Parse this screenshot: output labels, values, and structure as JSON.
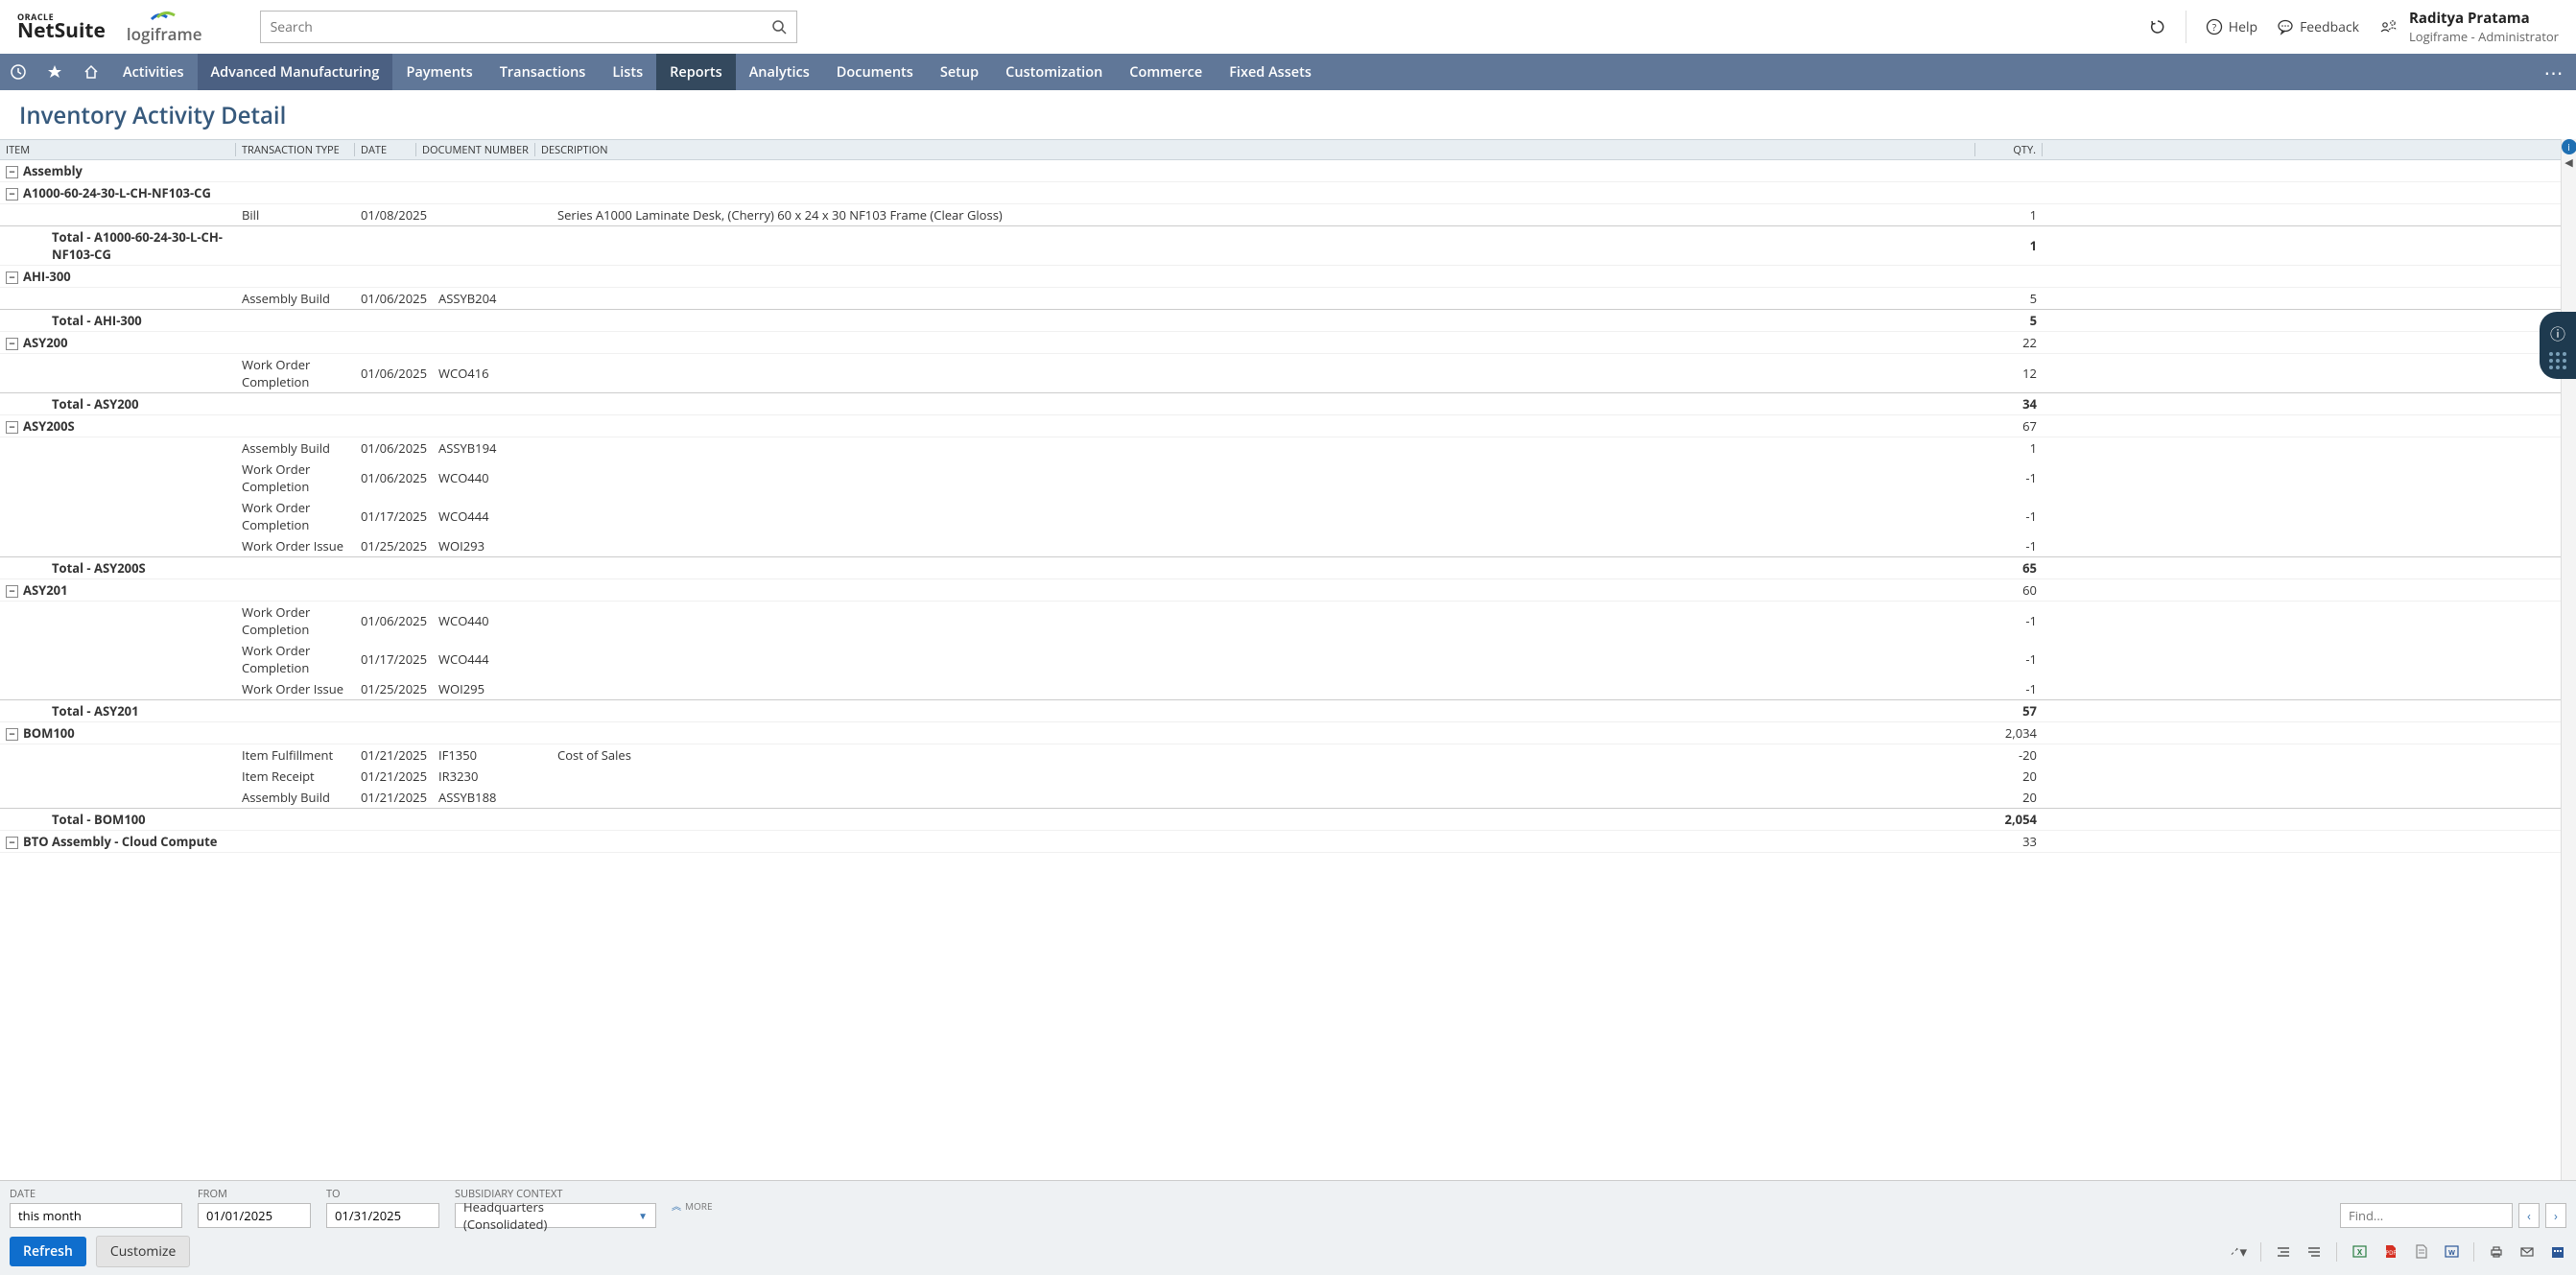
{
  "brand": {
    "oracle_top": "ORACLE",
    "oracle_bottom": "NetSuite",
    "partner": "logiframe"
  },
  "search": {
    "placeholder": "Search"
  },
  "header_links": {
    "help": "Help",
    "feedback": "Feedback"
  },
  "user": {
    "name": "Raditya Pratama",
    "role": "Logiframe - Administrator"
  },
  "nav": {
    "tabs": [
      {
        "label": "Activities",
        "cls": ""
      },
      {
        "label": "Advanced Manufacturing",
        "cls": "dark"
      },
      {
        "label": "Payments",
        "cls": ""
      },
      {
        "label": "Transactions",
        "cls": ""
      },
      {
        "label": "Lists",
        "cls": ""
      },
      {
        "label": "Reports",
        "cls": "active"
      },
      {
        "label": "Analytics",
        "cls": ""
      },
      {
        "label": "Documents",
        "cls": ""
      },
      {
        "label": "Setup",
        "cls": ""
      },
      {
        "label": "Customization",
        "cls": ""
      },
      {
        "label": "Commerce",
        "cls": ""
      },
      {
        "label": "Fixed Assets",
        "cls": ""
      }
    ]
  },
  "page_title": "Inventory Activity Detail",
  "columns": {
    "item": "ITEM",
    "trn": "TRANSACTION TYPE",
    "date": "DATE",
    "doc": "DOCUMENT NUMBER",
    "desc": "DESCRIPTION",
    "qty": "QTY."
  },
  "rows": [
    {
      "type": "group",
      "indent": 0,
      "label": "Assembly"
    },
    {
      "type": "group",
      "indent": 1,
      "label": "A1000-60-24-30-L-CH-NF103-CG"
    },
    {
      "type": "data",
      "trn": "Bill",
      "date": "01/08/2025",
      "doc": "",
      "desc": "Series A1000 Laminate Desk, (Cherry) 60 x 24 x 30 NF103 Frame (Clear Gloss)",
      "qty": "1"
    },
    {
      "type": "total",
      "indent": 1,
      "label": "Total - A1000-60-24-30-L-CH-NF103-CG",
      "qty": "1"
    },
    {
      "type": "group",
      "indent": 1,
      "label": "AHI-300"
    },
    {
      "type": "data",
      "trn": "Assembly Build",
      "date": "01/06/2025",
      "doc": "ASSYB204",
      "desc": "",
      "qty": "5"
    },
    {
      "type": "total",
      "indent": 1,
      "label": "Total - AHI-300",
      "qty": "5"
    },
    {
      "type": "group",
      "indent": 1,
      "label": "ASY200",
      "qty": "22"
    },
    {
      "type": "data",
      "trn": "Work Order Completion",
      "date": "01/06/2025",
      "doc": "WCO416",
      "desc": "",
      "qty": "12"
    },
    {
      "type": "total",
      "indent": 1,
      "label": "Total - ASY200",
      "qty": "34"
    },
    {
      "type": "group",
      "indent": 1,
      "label": "ASY200S",
      "qty": "67"
    },
    {
      "type": "data",
      "trn": "Assembly Build",
      "date": "01/06/2025",
      "doc": "ASSYB194",
      "desc": "",
      "qty": "1"
    },
    {
      "type": "data",
      "trn": "Work Order Completion",
      "date": "01/06/2025",
      "doc": "WCO440",
      "desc": "",
      "qty": "-1"
    },
    {
      "type": "data",
      "trn": "Work Order Completion",
      "date": "01/17/2025",
      "doc": "WCO444",
      "desc": "",
      "qty": "-1"
    },
    {
      "type": "data",
      "trn": "Work Order Issue",
      "date": "01/25/2025",
      "doc": "WOI293",
      "desc": "",
      "qty": "-1"
    },
    {
      "type": "total",
      "indent": 1,
      "label": "Total - ASY200S",
      "qty": "65"
    },
    {
      "type": "group",
      "indent": 1,
      "label": "ASY201",
      "qty": "60"
    },
    {
      "type": "data",
      "trn": "Work Order Completion",
      "date": "01/06/2025",
      "doc": "WCO440",
      "desc": "",
      "qty": "-1"
    },
    {
      "type": "data",
      "trn": "Work Order Completion",
      "date": "01/17/2025",
      "doc": "WCO444",
      "desc": "",
      "qty": "-1"
    },
    {
      "type": "data",
      "trn": "Work Order Issue",
      "date": "01/25/2025",
      "doc": "WOI295",
      "desc": "",
      "qty": "-1"
    },
    {
      "type": "total",
      "indent": 1,
      "label": "Total - ASY201",
      "qty": "57"
    },
    {
      "type": "group",
      "indent": 1,
      "label": "BOM100",
      "qty": "2,034"
    },
    {
      "type": "data",
      "trn": "Item Fulfillment",
      "date": "01/21/2025",
      "doc": "IF1350",
      "desc": "Cost of Sales",
      "qty": "-20"
    },
    {
      "type": "data",
      "trn": "Item Receipt",
      "date": "01/21/2025",
      "doc": "IR3230",
      "desc": "",
      "qty": "20"
    },
    {
      "type": "data",
      "trn": "Assembly Build",
      "date": "01/21/2025",
      "doc": "ASSYB188",
      "desc": "",
      "qty": "20"
    },
    {
      "type": "total",
      "indent": 1,
      "label": "Total - BOM100",
      "qty": "2,054"
    },
    {
      "type": "group",
      "indent": 1,
      "label": "BTO Assembly - Cloud Compute",
      "qty": "33"
    }
  ],
  "footer": {
    "date_label": "DATE",
    "date_value": "this month",
    "from_label": "FROM",
    "from_value": "01/01/2025",
    "to_label": "TO",
    "to_value": "01/31/2025",
    "sub_label": "SUBSIDIARY CONTEXT",
    "sub_value": "Headquarters (Consolidated)",
    "more": "MORE",
    "find_placeholder": "Find...",
    "refresh": "Refresh",
    "customize": "Customize"
  }
}
